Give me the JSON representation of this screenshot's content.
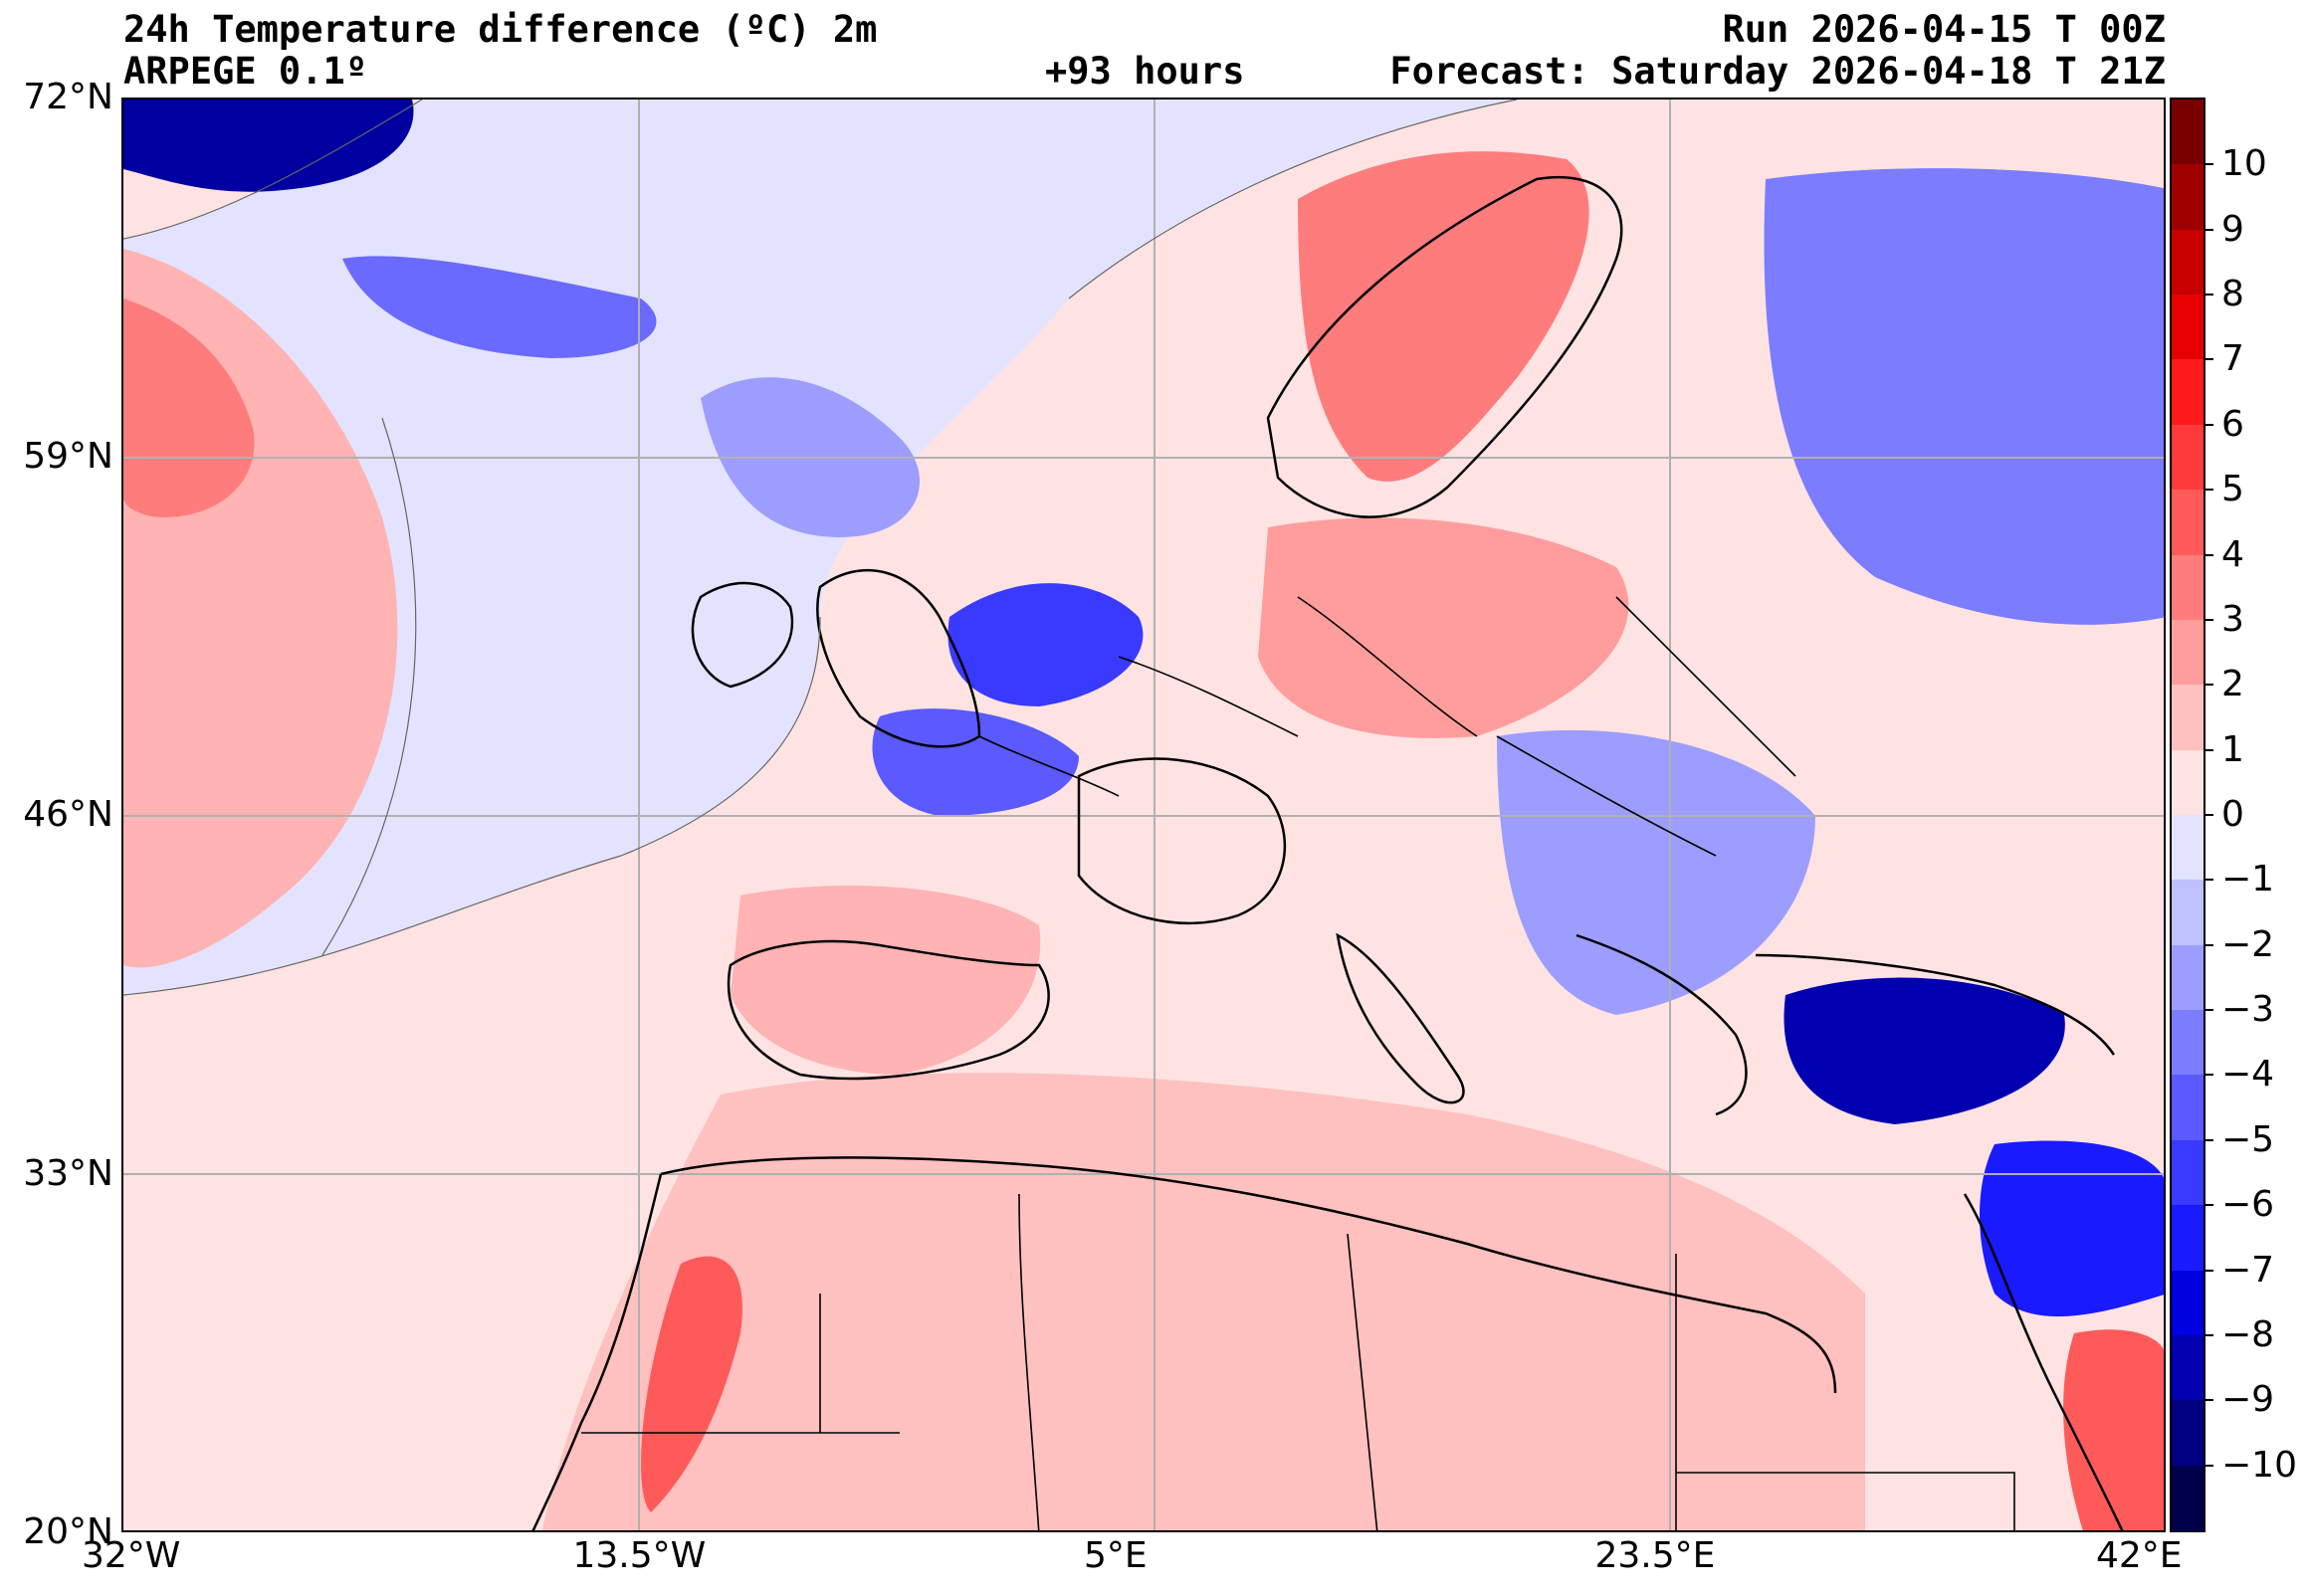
{
  "header": {
    "title": "24h Temperature difference (ºC) 2m",
    "model": "ARPEGE 0.1º",
    "lead_time": "+93 hours",
    "run": "Run 2026-04-15 T 00Z",
    "forecast": "Forecast: Saturday 2026-04-18 T 21Z"
  },
  "axes": {
    "lat_ticks": [
      "72°N",
      "59°N",
      "46°N",
      "33°N",
      "20°N"
    ],
    "lon_ticks": [
      "32°W",
      "13.5°W",
      "5°E",
      "23.5°E",
      "42°E"
    ],
    "lat_range": [
      20,
      72
    ],
    "lon_range": [
      -32,
      42
    ]
  },
  "colorbar": {
    "labels": [
      "10",
      "9",
      "8",
      "7",
      "6",
      "5",
      "4",
      "3",
      "2",
      "1",
      "0",
      "−1",
      "−2",
      "−3",
      "−4",
      "−5",
      "−6",
      "−7",
      "−8",
      "−9",
      "−10"
    ],
    "colors": [
      "#7a0000",
      "#a00000",
      "#c80000",
      "#e60000",
      "#ff1a1a",
      "#ff3a3a",
      "#ff5a5a",
      "#ff7c7c",
      "#ff9d9d",
      "#ffc0c0",
      "#ffe3e3",
      "#e3e3ff",
      "#c0c0ff",
      "#9d9dff",
      "#7c7cff",
      "#5a5aff",
      "#3a3aff",
      "#1a1aff",
      "#0000e0",
      "#0000b0",
      "#000080",
      "#00004a"
    ],
    "min": -11,
    "max": 11
  },
  "map_colors": {
    "sea_warm": "#ffe3e3",
    "sea_cool": "#e3e3ff",
    "land_border": "#000000",
    "grid": "#b0b0b0"
  }
}
